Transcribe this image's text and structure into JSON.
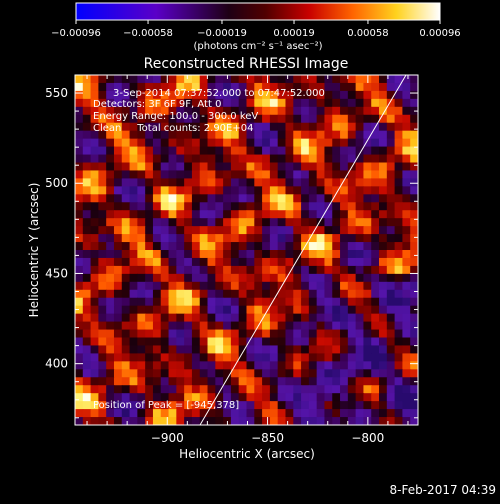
{
  "chart_data": {
    "type": "heatmap",
    "title": "Reconstructed RHESSI Image",
    "xlabel": "Heliocentric X (arcsec)",
    "ylabel": "Heliocentric Y (arcsec)",
    "xlim": [
      -946,
      -775
    ],
    "ylim": [
      366,
      560
    ],
    "x_ticks": [
      -900,
      -850,
      -800
    ],
    "x_tick_labels": [
      "−900",
      "−850",
      "−800"
    ],
    "y_ticks": [
      400,
      450,
      500,
      550
    ],
    "y_tick_labels": [
      "400",
      "450",
      "500",
      "550"
    ],
    "colorbar": {
      "range": [
        -0.00096,
        0.00096
      ],
      "ticks": [
        -0.00096,
        -0.00058,
        -0.00019,
        0.00019,
        0.00058,
        0.00096
      ],
      "tick_labels": [
        "−0.00096",
        "−0.00058",
        "−0.00019",
        "0.00019",
        "0.00058",
        "0.00096"
      ],
      "unit_label": "(photons cm⁻² s⁻¹ asec⁻²)",
      "colors": [
        "#0000ff",
        "#5a00c8",
        "#000000",
        "#8b0000",
        "#e11e00",
        "#ff9600",
        "#ffff3c",
        "#ffffff"
      ]
    },
    "annotations": [
      "3-Sep-2014 07:37:52.000 to 07:47:52.000",
      "Detectors: 3F 6F 9F, Att 0",
      "Energy Range: 100.0 - 300.0 keV",
      "Clean     Total counts: 2.90E+04"
    ],
    "peak_label": "Position of Peak = [-945,378]",
    "grid": false
  },
  "footer": {
    "date": "8-Feb-2017 04:39"
  },
  "colors": {
    "background": "#000000",
    "text": "#ffffff",
    "limb_line": "#ffffff"
  }
}
